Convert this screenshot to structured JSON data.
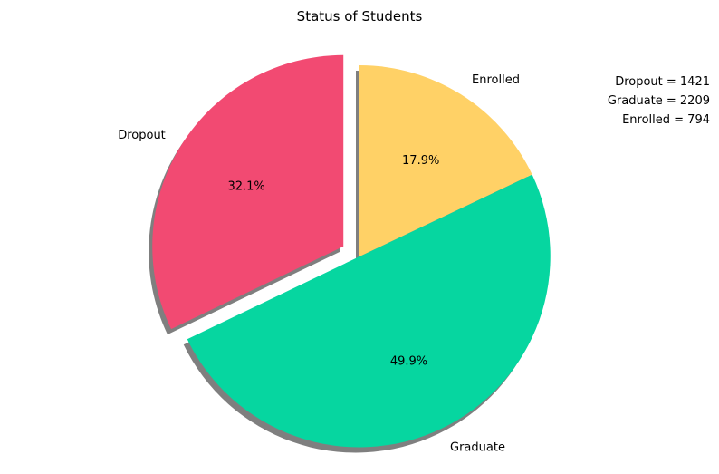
{
  "chart_data": {
    "type": "pie",
    "title": "Status of Students",
    "categories": [
      "Dropout",
      "Graduate",
      "Enrolled"
    ],
    "values": [
      1421,
      2209,
      794
    ],
    "percent_labels": [
      "32.1%",
      "49.9%",
      "17.9%"
    ],
    "colors": [
      "#f24a72",
      "#06d6a0",
      "#ffd166"
    ],
    "exploded": [
      true,
      false,
      false
    ],
    "shadow": true,
    "start_angle_deg": 90,
    "direction": "counterclockwise",
    "annotation_lines": [
      "Dropout = 1421",
      "Graduate = 2209",
      "Enrolled = 794"
    ]
  }
}
